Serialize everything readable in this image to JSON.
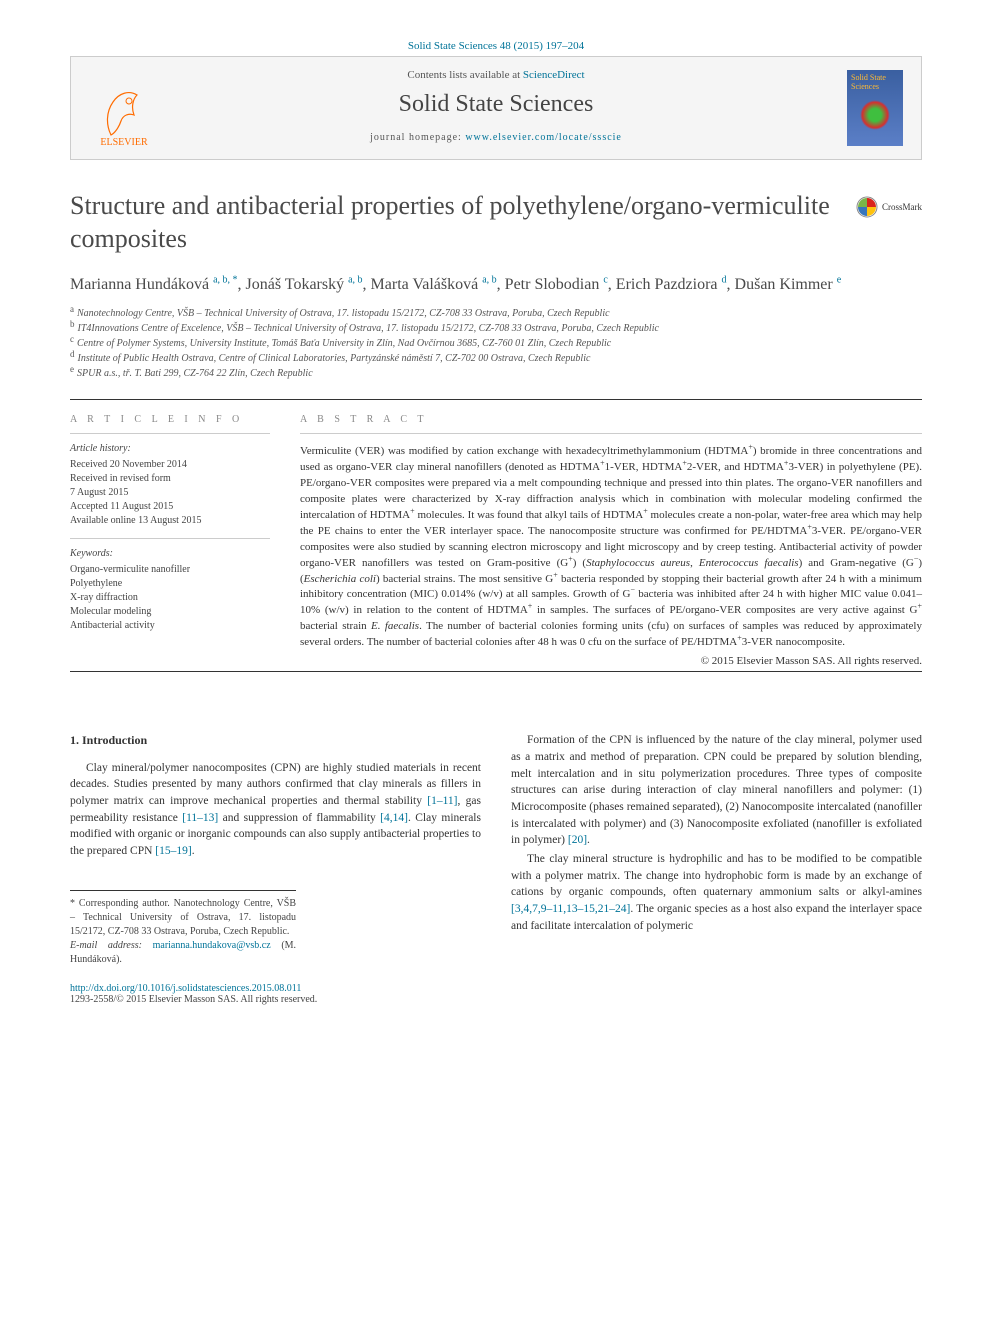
{
  "citation": "Solid State Sciences 48 (2015) 197–204",
  "header": {
    "contents_line_pre": "Contents lists available at ",
    "contents_link": "ScienceDirect",
    "journal_name": "Solid State Sciences",
    "homepage_pre": "journal homepage: ",
    "homepage_url": "www.elsevier.com/locate/ssscie",
    "publisher_logo_text": "ELSEVIER",
    "cover_text": "Solid State Sciences"
  },
  "article": {
    "title": "Structure and antibacterial properties of polyethylene/organo-vermiculite composites",
    "crossmark": "CrossMark",
    "authors_html": "Marianna Hundáková <sup>a, b, *</sup>, Jonáš Tokarský <sup>a, b</sup>, Marta Valášková <sup>a, b</sup>, Petr Slobodian <sup>c</sup>, Erich Pazdziora <sup>d</sup>, Dušan Kimmer <sup>e</sup>",
    "affiliations": [
      {
        "sup": "a",
        "text": "Nanotechnology Centre, VŠB – Technical University of Ostrava, 17. listopadu 15/2172, CZ-708 33 Ostrava, Poruba, Czech Republic"
      },
      {
        "sup": "b",
        "text": "IT4Innovations Centre of Excelence, VŠB – Technical University of Ostrava, 17. listopadu 15/2172, CZ-708 33 Ostrava, Poruba, Czech Republic"
      },
      {
        "sup": "c",
        "text": "Centre of Polymer Systems, University Institute, Tomáš Baťa University in Zlín, Nad Ovčírnou 3685, CZ-760 01 Zlín, Czech Republic"
      },
      {
        "sup": "d",
        "text": "Institute of Public Health Ostrava, Centre of Clinical Laboratories, Partyzánské náměstí 7, CZ-702 00 Ostrava, Czech Republic"
      },
      {
        "sup": "e",
        "text": "SPUR a.s., tř. T. Bati 299, CZ-764 22 Zlín, Czech Republic"
      }
    ]
  },
  "info": {
    "label": "A R T I C L E   I N F O",
    "history_heading": "Article history:",
    "history": [
      "Received 20 November 2014",
      "Received in revised form",
      "7 August 2015",
      "Accepted 11 August 2015",
      "Available online 13 August 2015"
    ],
    "keywords_heading": "Keywords:",
    "keywords": [
      "Organo-vermiculite nanofiller",
      "Polyethylene",
      "X-ray diffraction",
      "Molecular modeling",
      "Antibacterial activity"
    ]
  },
  "abstract": {
    "label": "A B S T R A C T",
    "text_html": "Vermiculite (VER) was modified by cation exchange with hexadecyltrimethylammonium (HDTMA<sup>+</sup>) bromide in three concentrations and used as organo-VER clay mineral nanofillers (denoted as HDTMA<sup>+</sup>1-VER, HDTMA<sup>+</sup>2-VER, and HDTMA<sup>+</sup>3-VER) in polyethylene (PE). PE/organo-VER composites were prepared via a melt compounding technique and pressed into thin plates. The organo-VER nanofillers and composite plates were characterized by X-ray diffraction analysis which in combination with molecular modeling confirmed the intercalation of HDTMA<sup>+</sup> molecules. It was found that alkyl tails of HDTMA<sup>+</sup> molecules create a non-polar, water-free area which may help the PE chains to enter the VER interlayer space. The nanocomposite structure was confirmed for PE/HDTMA<sup>+</sup>3-VER. PE/organo-VER composites were also studied by scanning electron microscopy and light microscopy and by creep testing. Antibacterial activity of powder organo-VER nanofillers was tested on Gram-positive (G<sup>+</sup>) (<i>Staphylococcus aureus</i>, <i>Enterococcus faecalis</i>) and Gram-negative (G<sup>−</sup>) (<i>Escherichia coli</i>) bacterial strains. The most sensitive G<sup>+</sup> bacteria responded by stopping their bacterial growth after 24 h with a minimum inhibitory concentration (MIC) 0.014% (w/v) at all samples. Growth of G<sup>−</sup> bacteria was inhibited after 24 h with higher MIC value 0.041–10% (w/v) in relation to the content of HDTMA<sup>+</sup> in samples. The surfaces of PE/organo-VER composites are very active against G<sup>+</sup> bacterial strain <i>E. faecalis</i>. The number of bacterial colonies forming units (cfu) on surfaces of samples was reduced by approximately several orders. The number of bacterial colonies after 48 h was 0 cfu on the surface of PE/HDTMA<sup>+</sup>3-VER nanocomposite.",
    "copyright": "© 2015 Elsevier Masson SAS. All rights reserved."
  },
  "body": {
    "section_number": "1.",
    "section_title": "Introduction",
    "left_p1_html": "Clay mineral/polymer nanocomposites (CPN) are highly studied materials in recent decades. Studies presented by many authors confirmed that clay minerals as fillers in polymer matrix can improve mechanical properties and thermal stability <a>[1–11]</a>, gas permeability resistance <a>[11–13]</a> and suppression of flammability <a>[4,14]</a>. Clay minerals modified with organic or inorganic compounds can also supply antibacterial properties to the prepared CPN <a>[15–19]</a>.",
    "right_p1_html": "Formation of the CPN is influenced by the nature of the clay mineral, polymer used as a matrix and method of preparation. CPN could be prepared by solution blending, melt intercalation and in situ polymerization procedures. Three types of composite structures can arise during interaction of clay mineral nanofillers and polymer: (1) Microcomposite (phases remained separated), (2) Nanocomposite intercalated (nanofiller is intercalated with polymer) and (3) Nanocomposite exfoliated (nanofiller is exfoliated in polymer) <a>[20]</a>.",
    "right_p2_html": "The clay mineral structure is hydrophilic and has to be modified to be compatible with a polymer matrix. The change into hydrophobic form is made by an exchange of cations by organic compounds, often quaternary ammonium salts or alkyl-amines <a>[3,4,7,9–11,13–15,21–24]</a>. The organic species as a host also expand the interlayer space and facilitate intercalation of polymeric"
  },
  "footnote": {
    "corr_html": "* Corresponding author. Nanotechnology Centre, VŠB – Technical University of Ostrava, 17. listopadu 15/2172, CZ-708 33 Ostrava, Poruba, Czech Republic.",
    "email_label": "E-mail address:",
    "email": "marianna.hundakova@vsb.cz",
    "email_suffix": "(M. Hundáková)."
  },
  "footer": {
    "doi": "http://dx.doi.org/10.1016/j.solidstatesciences.2015.08.011",
    "issn_line": "1293-2558/© 2015 Elsevier Masson SAS. All rights reserved."
  }
}
